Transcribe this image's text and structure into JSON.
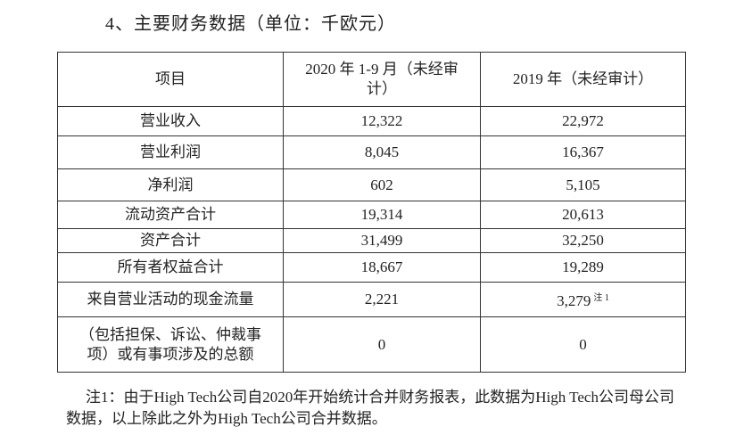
{
  "heading": "4、主要财务数据（单位：千欧元）",
  "table": {
    "header": [
      "项目",
      "2020 年 1-9 月（未经审计）",
      "2019 年（未经审计）"
    ],
    "rows": [
      [
        "营业收入",
        "12,322",
        "22,972"
      ],
      [
        "营业利润",
        "8,045",
        "16,367"
      ],
      [
        "净利润",
        "602",
        "5,105"
      ],
      [
        "流动资产合计",
        "19,314",
        "20,613"
      ],
      [
        "资产合计",
        "31,499",
        "32,250"
      ],
      [
        "所有者权益合计",
        "18,667",
        "19,289"
      ],
      [
        "来自营业活动的现金流量",
        "2,221",
        {
          "text": "3,279",
          "note": "注 1"
        }
      ],
      [
        "（包括担保、诉讼、仲裁事项）或有事项涉及的总额",
        "0",
        "0"
      ]
    ]
  },
  "footnote": "注1：由于High Tech公司自2020年开始统计合并财务报表，此数据为High Tech公司母公司数据，以上除此之外为High Tech公司合并数据。"
}
